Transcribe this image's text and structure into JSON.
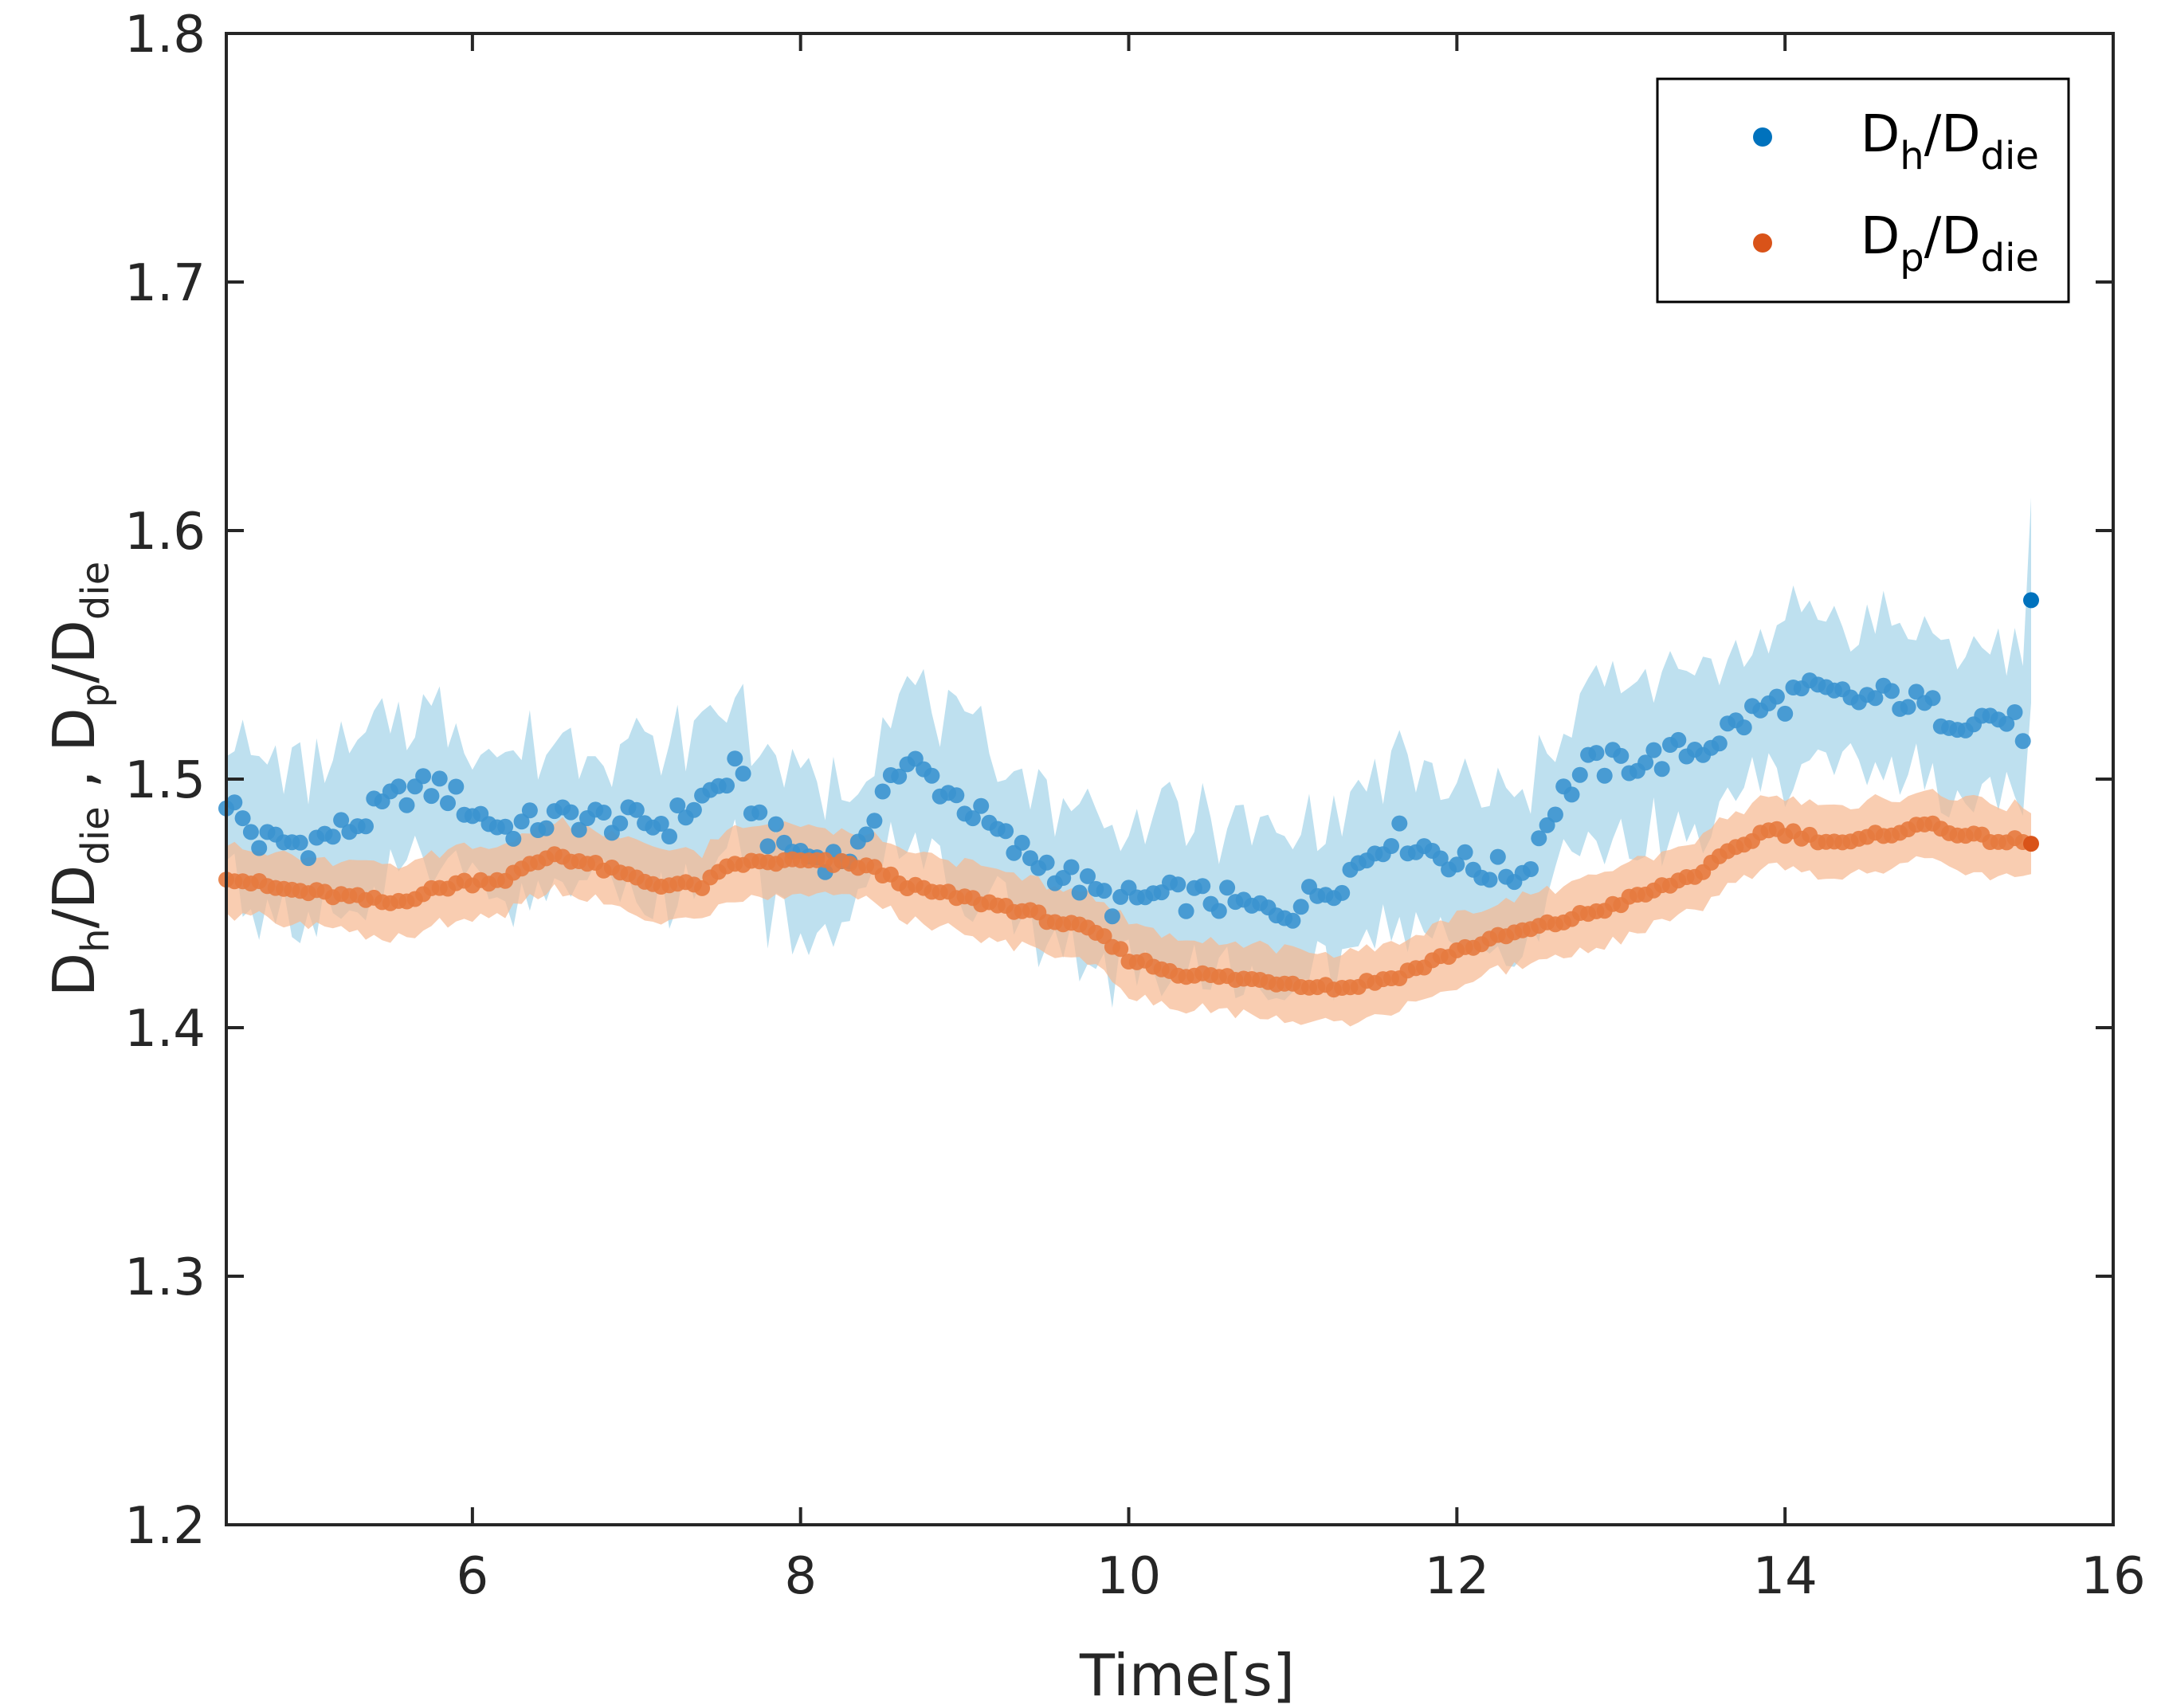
{
  "chart_data": {
    "type": "scatter",
    "title": "",
    "xlabel": "Time[s]",
    "ylabel": {
      "base1": "D",
      "sub1": "h",
      "mid": "/D",
      "sub2": "die",
      "sep": " , ",
      "base2": "D",
      "sub3": "p",
      "mid2": "/D",
      "sub4": "die"
    },
    "xlim": [
      4.5,
      16
    ],
    "ylim": [
      1.2,
      1.8
    ],
    "xticks": [
      "6",
      "8",
      "10",
      "12",
      "14",
      "16"
    ],
    "xtick_values": [
      6,
      8,
      10,
      12,
      14,
      16
    ],
    "yticks": [
      "1.2",
      "1.3",
      "1.4",
      "1.5",
      "1.6",
      "1.7",
      "1.8"
    ],
    "ytick_values": [
      1.2,
      1.3,
      1.4,
      1.5,
      1.6,
      1.7,
      1.8
    ],
    "grid": false,
    "legend_position": "top-right",
    "colors": {
      "series_h": "#0072BD",
      "series_h_marker": "#3b94cf",
      "band_h": "#a8d5ea",
      "series_p": "#D95319",
      "series_p_marker": "#e57a3f",
      "band_p": "#f6b890",
      "axis": "#262626"
    },
    "series": [
      {
        "name": "Dh/Ddie",
        "legend": {
          "base": "D",
          "sub": "h",
          "mid": "/D",
          "sub2": "die"
        },
        "band_halfwidth": 0.03,
        "keypoints": [
          [
            4.5,
            1.492
          ],
          [
            4.7,
            1.475
          ],
          [
            5.0,
            1.474
          ],
          [
            5.3,
            1.482
          ],
          [
            5.6,
            1.495
          ],
          [
            5.8,
            1.497
          ],
          [
            6.0,
            1.487
          ],
          [
            6.2,
            1.48
          ],
          [
            6.6,
            1.485
          ],
          [
            6.9,
            1.483
          ],
          [
            7.2,
            1.482
          ],
          [
            7.5,
            1.497
          ],
          [
            7.6,
            1.503
          ],
          [
            7.8,
            1.478
          ],
          [
            8.0,
            1.47
          ],
          [
            8.2,
            1.468
          ],
          [
            8.4,
            1.472
          ],
          [
            8.5,
            1.5
          ],
          [
            8.7,
            1.505
          ],
          [
            9.0,
            1.49
          ],
          [
            9.3,
            1.472
          ],
          [
            9.6,
            1.462
          ],
          [
            9.9,
            1.45
          ],
          [
            10.2,
            1.453
          ],
          [
            10.5,
            1.452
          ],
          [
            10.8,
            1.447
          ],
          [
            11.0,
            1.448
          ],
          [
            11.3,
            1.46
          ],
          [
            11.6,
            1.478
          ],
          [
            11.9,
            1.47
          ],
          [
            12.1,
            1.464
          ],
          [
            12.4,
            1.462
          ],
          [
            12.6,
            1.49
          ],
          [
            12.8,
            1.505
          ],
          [
            13.2,
            1.508
          ],
          [
            13.5,
            1.513
          ],
          [
            13.8,
            1.526
          ],
          [
            14.1,
            1.535
          ],
          [
            14.4,
            1.532
          ],
          [
            14.7,
            1.533
          ],
          [
            15.0,
            1.525
          ],
          [
            15.3,
            1.525
          ],
          [
            15.45,
            1.52
          ],
          [
            15.5,
            1.572
          ]
        ]
      },
      {
        "name": "Dp/Ddie",
        "legend": {
          "base": "D",
          "sub": "p",
          "mid": "/D",
          "sub2": "die"
        },
        "band_halfwidth": 0.014,
        "keypoints": [
          [
            4.5,
            1.461
          ],
          [
            4.8,
            1.456
          ],
          [
            5.2,
            1.453
          ],
          [
            5.5,
            1.45
          ],
          [
            5.9,
            1.458
          ],
          [
            6.2,
            1.46
          ],
          [
            6.5,
            1.47
          ],
          [
            6.8,
            1.464
          ],
          [
            7.1,
            1.458
          ],
          [
            7.4,
            1.457
          ],
          [
            7.6,
            1.466
          ],
          [
            8.0,
            1.467
          ],
          [
            8.4,
            1.465
          ],
          [
            8.7,
            1.456
          ],
          [
            9.0,
            1.452
          ],
          [
            9.3,
            1.448
          ],
          [
            9.6,
            1.442
          ],
          [
            9.8,
            1.438
          ],
          [
            10.0,
            1.428
          ],
          [
            10.3,
            1.422
          ],
          [
            10.6,
            1.42
          ],
          [
            11.0,
            1.418
          ],
          [
            11.3,
            1.416
          ],
          [
            11.6,
            1.42
          ],
          [
            11.8,
            1.425
          ],
          [
            12.0,
            1.431
          ],
          [
            12.3,
            1.437
          ],
          [
            12.6,
            1.442
          ],
          [
            12.9,
            1.448
          ],
          [
            13.2,
            1.455
          ],
          [
            13.5,
            1.463
          ],
          [
            13.7,
            1.472
          ],
          [
            13.9,
            1.48
          ],
          [
            14.2,
            1.476
          ],
          [
            14.4,
            1.474
          ],
          [
            14.6,
            1.478
          ],
          [
            14.9,
            1.482
          ],
          [
            15.1,
            1.477
          ],
          [
            15.5,
            1.474
          ]
        ]
      }
    ]
  }
}
